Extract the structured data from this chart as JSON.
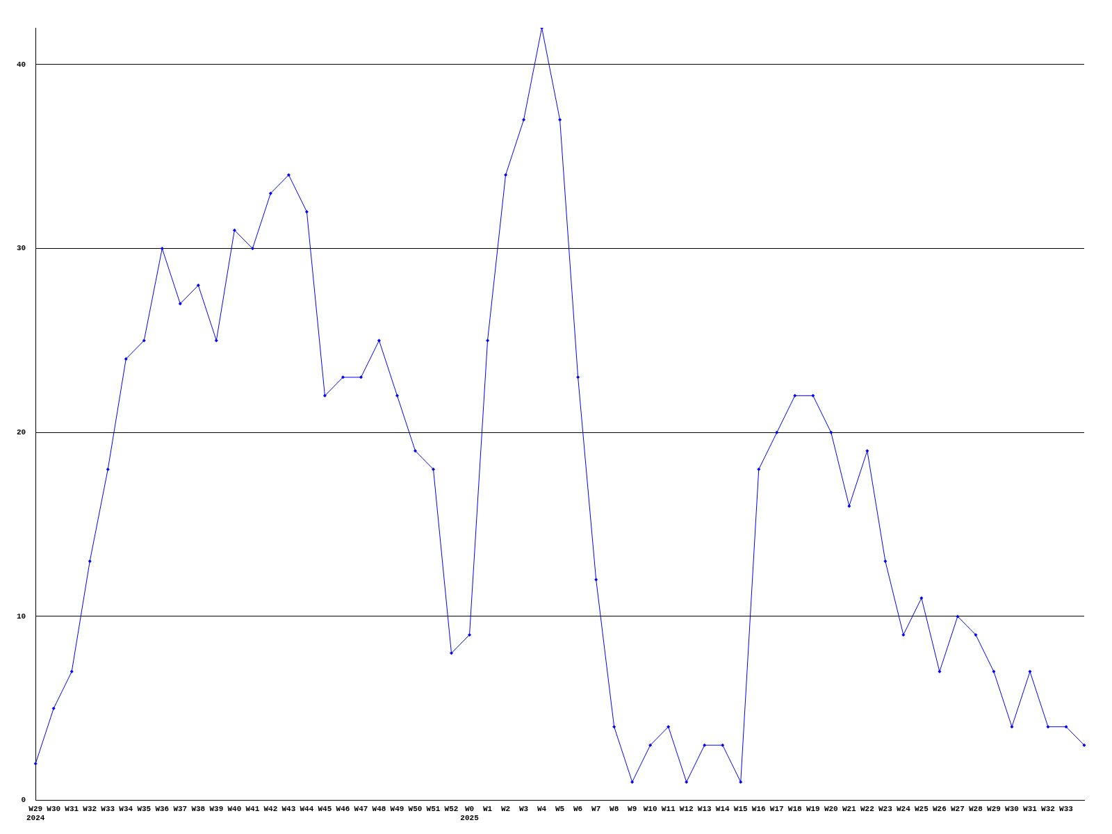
{
  "chart_data": {
    "type": "line",
    "categories": [
      "W29\n2024",
      "W30",
      "W31",
      "W32",
      "W33",
      "W34",
      "W35",
      "W36",
      "W37",
      "W38",
      "W39",
      "W40",
      "W41",
      "W42",
      "W43",
      "W44",
      "W45",
      "W46",
      "W47",
      "W48",
      "W49",
      "W50",
      "W51",
      "W52",
      "W0\n2025",
      "W1",
      "W2",
      "W3",
      "W4",
      "W5",
      "W6",
      "W7",
      "W8",
      "W9",
      "W10",
      "W11",
      "W12",
      "W13",
      "W14",
      "W15",
      "W16",
      "W17",
      "W18",
      "W19",
      "W20",
      "W21",
      "W22",
      "W23",
      "W24",
      "W25",
      "W26",
      "W27",
      "W28",
      "W29",
      "W30",
      "W31",
      "W32",
      "W33",
      null
    ],
    "series": [
      {
        "color": "#0000ff",
        "values": [
          2,
          5,
          7,
          13,
          18,
          24,
          25,
          30,
          27,
          28,
          25,
          31,
          30,
          33,
          34,
          32,
          22,
          23,
          23,
          25,
          22,
          19,
          18,
          8,
          9,
          25,
          34,
          37,
          42,
          37,
          23,
          12,
          4,
          1,
          3,
          4,
          1,
          3,
          3,
          1,
          18,
          20,
          22,
          22,
          20,
          16,
          19,
          13,
          9,
          11,
          7,
          10,
          9,
          7,
          4,
          7,
          4,
          4,
          3
        ]
      }
    ],
    "ylim": [
      0,
      42
    ],
    "yticks": [
      0,
      10,
      20,
      30,
      40
    ],
    "grid": "y",
    "legend": false,
    "marker": "diamond",
    "line_style": "solid"
  }
}
